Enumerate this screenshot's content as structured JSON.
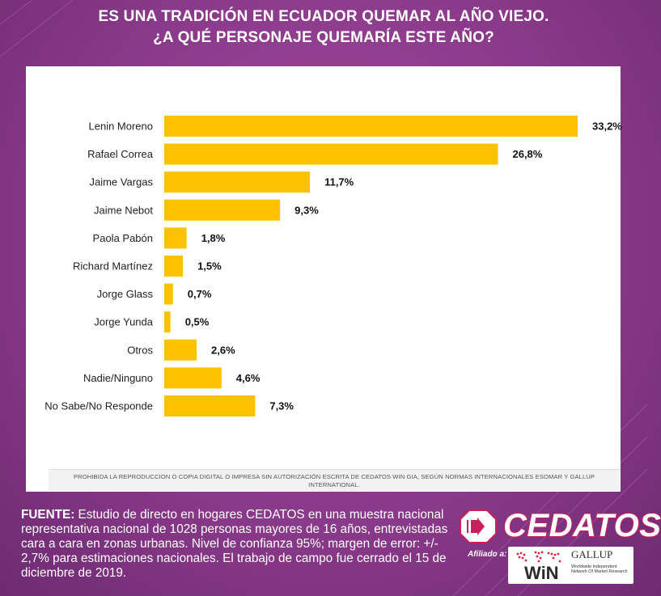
{
  "title": {
    "line1": "ES UNA TRADICIÓN EN ECUADOR QUEMAR AL AÑO VIEJO.",
    "line2": "¿A QUÉ PERSONAJE QUEMARÍA ESTE AÑO?"
  },
  "chart_data": {
    "type": "bar",
    "orientation": "horizontal",
    "categories": [
      "Lenin Moreno",
      "Rafael Correa",
      "Jaime Vargas",
      "Jaime Nebot",
      "Paola Pabón",
      "Richard Martínez",
      "Jorge Glass",
      "Jorge Yunda",
      "Otros",
      "Nadie/Ninguno",
      "No Sabe/No Responde"
    ],
    "values": [
      33.2,
      26.8,
      11.7,
      9.3,
      1.8,
      1.5,
      0.7,
      0.5,
      2.6,
      4.6,
      7.3
    ],
    "value_labels": [
      "33,2%",
      "26,8%",
      "11,7%",
      "9,3%",
      "1,8%",
      "1,5%",
      "0,7%",
      "0,5%",
      "2,6%",
      "4,6%",
      "7,3%"
    ],
    "bar_color": "#fcc200",
    "xlim": [
      0,
      33.2
    ],
    "grid": false,
    "legend": "none"
  },
  "panel": {
    "footer_note": "PROHIBIDA LA REPRODUCCION O COPIA DIGITAL O IMPRESA SIN AUTORIZACIÓN ESCRITA DE CEDATOS WIN GIA, SEGÚN NORMAS INTERNACIONALES ESOMAR Y GALLUP INTERNATIONAL."
  },
  "source": {
    "label": "FUENTE:",
    "text": " Estudio de directo en hogares CEDATOS en una muestra nacional representativa nacional de 1028 personas mayores de 16 años, entrevistadas cara a cara en zonas urbanas. Nivel de confianza 95%; margen de error:  +/- 2,7% para estimaciones nacionales. El trabajo de campo fue cerrado el 15 de diciembre de 2019."
  },
  "brand": {
    "name": "CEDATOS",
    "affiliate_label": "Afiliado a:",
    "win": "WiN",
    "gallup": "GALLUP",
    "win_subtitle": "Worldwide Independent Network Of Market Research"
  },
  "colors": {
    "background": "#8a3a8a",
    "accent": "#c7205a",
    "bar": "#fcc200"
  }
}
